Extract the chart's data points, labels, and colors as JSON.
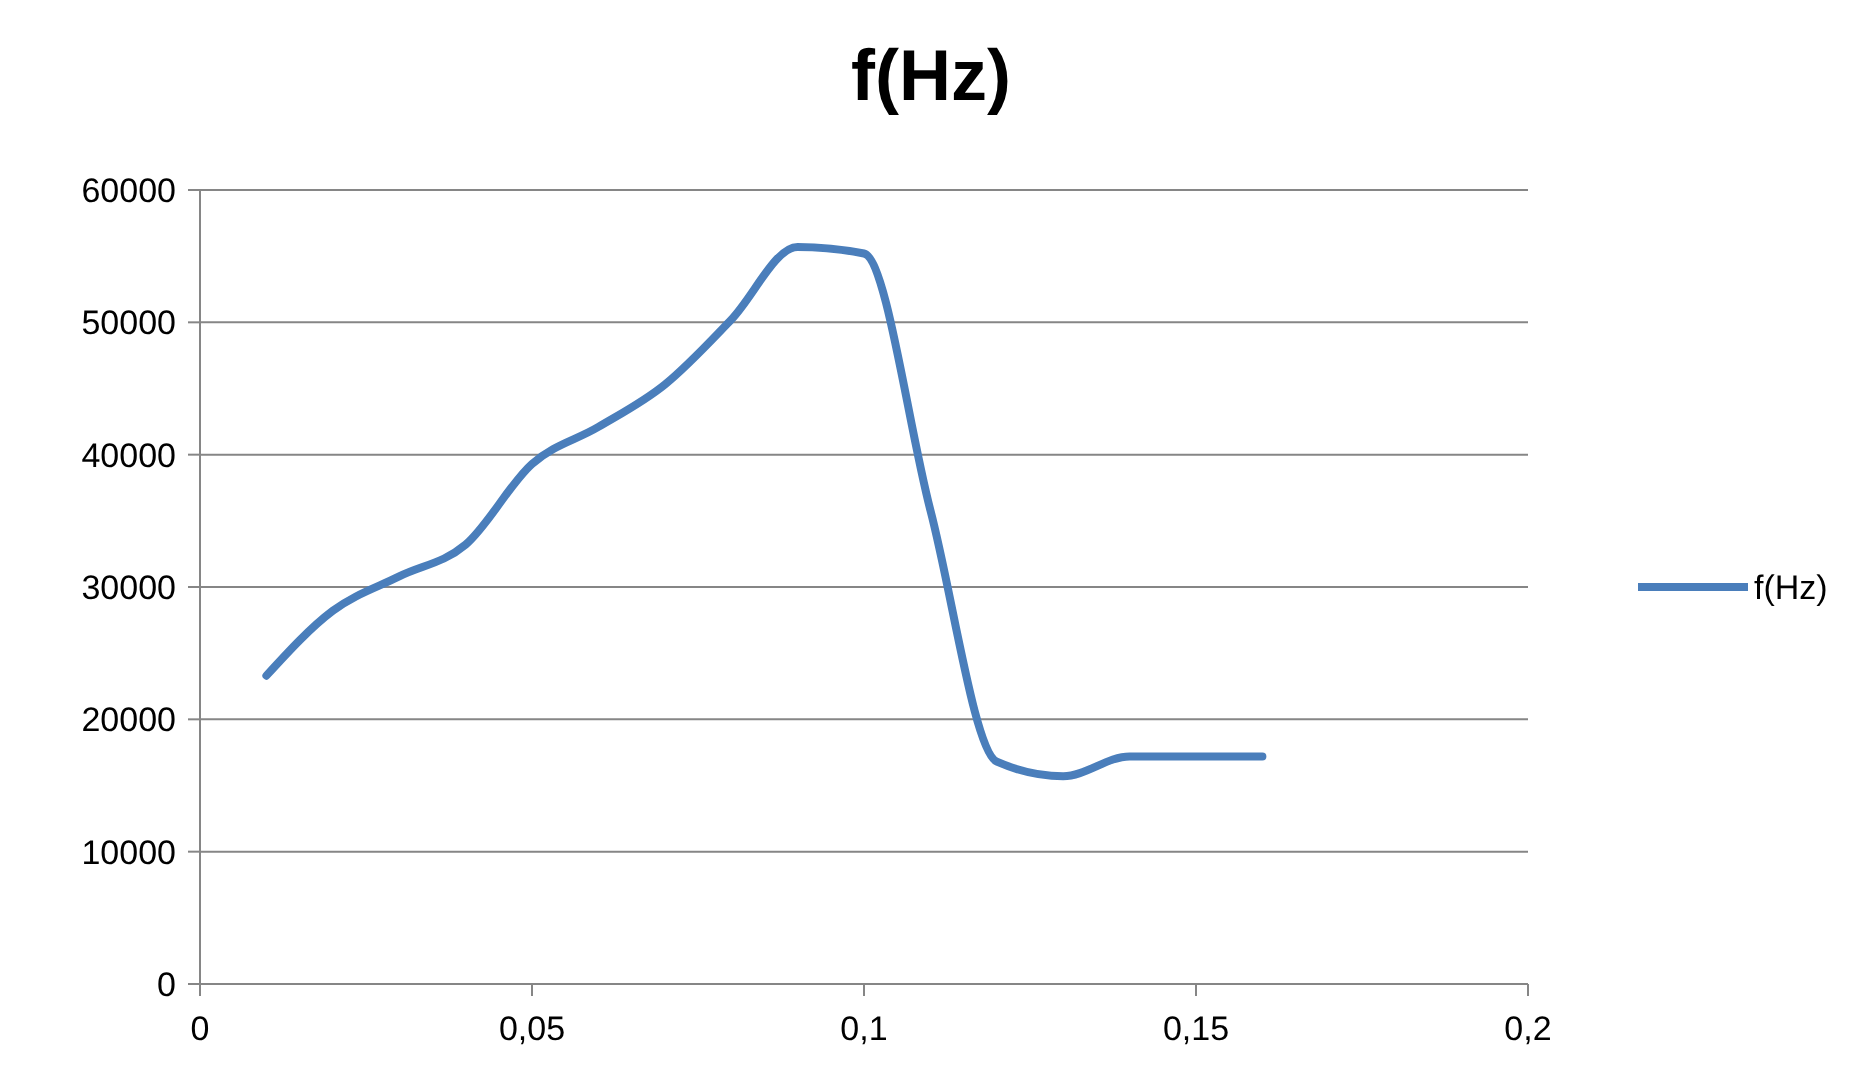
{
  "chart_data": {
    "type": "line",
    "title": "f(Hz)",
    "x": [
      0.01,
      0.02,
      0.03,
      0.04,
      0.05,
      0.06,
      0.07,
      0.08,
      0.09,
      0.1,
      0.11,
      0.12,
      0.13,
      0.14,
      0.15,
      0.16
    ],
    "series": [
      {
        "name": "f(Hz)",
        "color": "#4a7ebb",
        "values": [
          23300,
          28200,
          30800,
          33200,
          39300,
          42100,
          45300,
          50200,
          55700,
          55200,
          35800,
          16800,
          15700,
          17200,
          17200,
          17200
        ]
      }
    ],
    "xlim": [
      0,
      0.2
    ],
    "xticks": [
      0,
      {
        "value": 0.05,
        "label": "0,05"
      },
      {
        "value": 0.1,
        "label": "0,1"
      },
      {
        "value": 0.15,
        "label": "0,15"
      },
      {
        "value": 0.2,
        "label": "0,2"
      }
    ],
    "ylim": [
      0,
      60000
    ],
    "yticks": [
      0,
      10000,
      20000,
      30000,
      40000,
      50000,
      60000
    ],
    "grid": "y",
    "legend": "right",
    "marker": "none",
    "line_style": "solid"
  }
}
